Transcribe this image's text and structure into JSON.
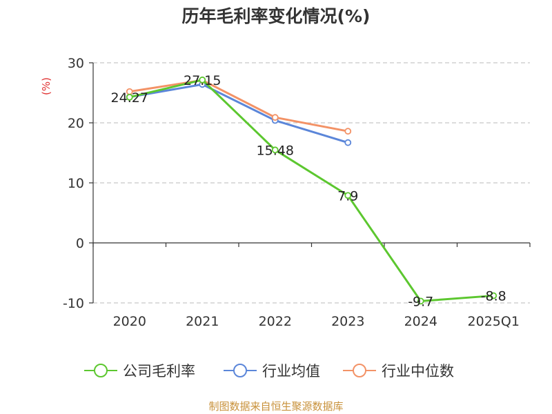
{
  "chart_data": {
    "type": "line",
    "title": "历年毛利率变化情况(%)",
    "ylabel": "(%)",
    "categories": [
      "2020",
      "2021",
      "2022",
      "2023",
      "2024",
      "2025Q1"
    ],
    "ylim": [
      -10,
      30
    ],
    "yticks": [
      30,
      20,
      10,
      0,
      -10
    ],
    "grid": true,
    "legend_position": "bottom",
    "series": [
      {
        "name": "公司毛利率",
        "color": "#5cc72f",
        "values": [
          24.27,
          27.15,
          15.48,
          7.9,
          -9.7,
          -8.8
        ],
        "labels": [
          "24.27",
          "27.15",
          "15.48",
          "7.9",
          "-9.7",
          "-8.8"
        ]
      },
      {
        "name": "行业均值",
        "color": "#5b86d9",
        "values": [
          24.3,
          26.4,
          20.4,
          16.7,
          null,
          null
        ]
      },
      {
        "name": "行业中位数",
        "color": "#f39266",
        "values": [
          25.2,
          27.1,
          20.9,
          18.6,
          null,
          null
        ]
      }
    ]
  },
  "source": "制图数据来自恒生聚源数据库"
}
